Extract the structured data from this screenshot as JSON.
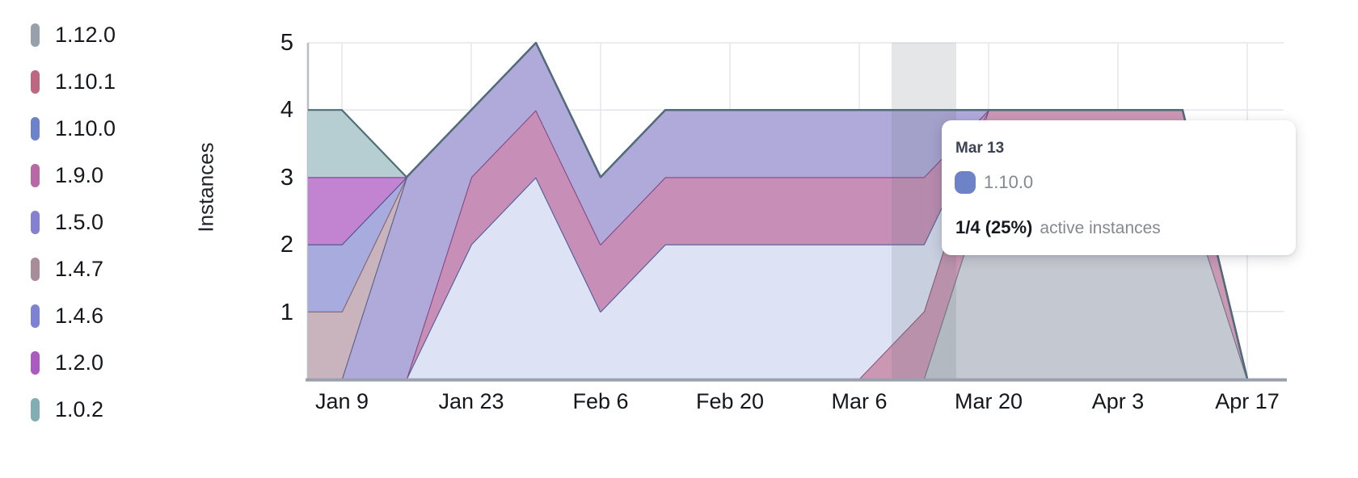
{
  "legend": {
    "items": [
      {
        "label": "1.12.0",
        "color": "#98a1ab"
      },
      {
        "label": "1.10.1",
        "color": "#bd6880"
      },
      {
        "label": "1.10.0",
        "color": "#6c83ca"
      },
      {
        "label": "1.9.0",
        "color": "#b769a6"
      },
      {
        "label": "1.5.0",
        "color": "#8580d0"
      },
      {
        "label": "1.4.7",
        "color": "#a98c99"
      },
      {
        "label": "1.4.6",
        "color": "#7e82d3"
      },
      {
        "label": "1.2.0",
        "color": "#aa5ac1"
      },
      {
        "label": "1.0.2",
        "color": "#82adb2"
      }
    ]
  },
  "tooltip": {
    "date": "Mar 13",
    "series_label": "1.10.0",
    "swatch_color": "#6e82c8",
    "value": "1/4 (25%)",
    "value_suffix": "active instances"
  },
  "chart_data": {
    "type": "area",
    "stacked": true,
    "title": "",
    "ylabel": "Instances",
    "xlabel": "",
    "ylim": [
      0,
      5
    ],
    "grid": true,
    "legend_position": "left",
    "x": [
      "Jan 2",
      "Jan 9",
      "Jan 16",
      "Jan 23",
      "Jan 30",
      "Feb 6",
      "Feb 13",
      "Feb 20",
      "Feb 27",
      "Mar 6",
      "Mar 13",
      "Mar 20",
      "Mar 27",
      "Apr 3",
      "Apr 10",
      "Apr 17"
    ],
    "x_tick_labels": [
      "Jan 9",
      "Jan 23",
      "Feb 6",
      "Feb 20",
      "Mar 6",
      "Mar 20",
      "Apr 3",
      "Apr 17"
    ],
    "y_tick_labels": [
      "5",
      "4",
      "3",
      "2",
      "1"
    ],
    "hover": {
      "x": "Mar 13",
      "highlighted_series": "1.10.0",
      "value_text": "1/4 (25%) active instances"
    },
    "stack_order": "bottom-to-top",
    "series": [
      {
        "name": "1.12.0",
        "fill": "#c4c8d0",
        "stroke": "#6e7683",
        "values": [
          0,
          0,
          0,
          0,
          0,
          0,
          0,
          0,
          0,
          0,
          0,
          3,
          3,
          3,
          3,
          0
        ]
      },
      {
        "name": "1.10.1",
        "fill": "#cb98b4",
        "stroke": "#8f5578",
        "values": [
          0,
          0,
          0,
          0,
          0,
          0,
          0,
          0,
          0,
          0,
          1,
          1,
          1,
          1,
          1,
          0
        ]
      },
      {
        "name": "1.10.0",
        "fill": "#dde3f4",
        "stroke": "#4d5d95",
        "values": [
          0,
          0,
          0,
          2,
          3,
          1,
          2,
          2,
          2,
          2,
          1,
          0,
          0,
          0,
          0,
          0
        ]
      },
      {
        "name": "1.9.0",
        "fill": "#c78fb8",
        "stroke": "#84487f",
        "values": [
          0,
          0,
          0,
          1,
          1,
          1,
          1,
          1,
          1,
          1,
          1,
          0,
          0,
          0,
          0,
          0
        ]
      },
      {
        "name": "1.5.0",
        "fill": "#b0aadb",
        "stroke": "#575f88",
        "values": [
          0,
          0,
          3,
          1,
          1,
          1,
          1,
          1,
          1,
          1,
          1,
          0,
          0,
          0,
          0,
          0
        ]
      },
      {
        "name": "1.4.7",
        "fill": "#c9b3bd",
        "stroke": "#84626f",
        "values": [
          1,
          1,
          0,
          0,
          0,
          0,
          0,
          0,
          0,
          0,
          0,
          0,
          0,
          0,
          0,
          0
        ]
      },
      {
        "name": "1.4.6",
        "fill": "#a7abde",
        "stroke": "#4c4f8b",
        "values": [
          1,
          1,
          0,
          0,
          0,
          0,
          0,
          0,
          0,
          0,
          0,
          0,
          0,
          0,
          0,
          0
        ]
      },
      {
        "name": "1.2.0",
        "fill": "#c284d0",
        "stroke": "#7f3f98",
        "values": [
          1,
          1,
          0,
          0,
          0,
          0,
          0,
          0,
          0,
          0,
          0,
          0,
          0,
          0,
          0,
          0
        ]
      },
      {
        "name": "1.0.2",
        "fill": "#b6ced1",
        "stroke": "#4e6f77",
        "values": [
          1,
          1,
          0,
          0,
          0,
          0,
          0,
          0,
          0,
          0,
          0,
          0,
          0,
          0,
          0,
          0
        ]
      }
    ],
    "colors": {
      "hover_band": "rgba(108,116,130,0.18)",
      "gridline": "#e3e5ea",
      "axis_line": "#b9bec6",
      "baseline": "#9aa1ac"
    }
  }
}
